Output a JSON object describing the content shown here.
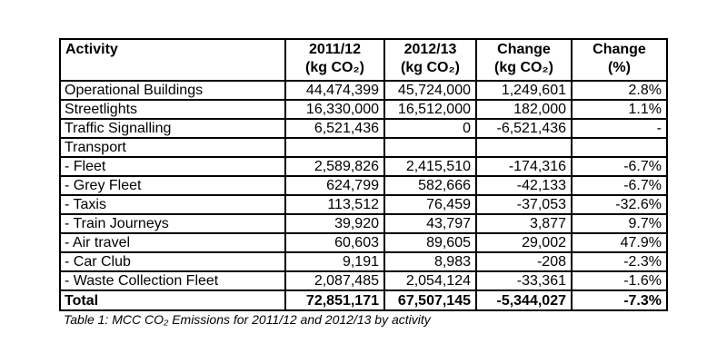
{
  "colors": {
    "page_background": "#ffffff",
    "border": "#000000",
    "text": "#000000"
  },
  "table": {
    "columns": [
      {
        "id": "activity",
        "line1": "Activity",
        "line2": ""
      },
      {
        "id": "y2011_12",
        "line1": "2011/12",
        "line2": "(kg CO₂)"
      },
      {
        "id": "y2012_13",
        "line1": "2012/13",
        "line2": "(kg CO₂)"
      },
      {
        "id": "change_kg",
        "line1": "Change",
        "line2": "(kg CO₂)"
      },
      {
        "id": "change_pct",
        "line1": "Change",
        "line2": "(%)"
      }
    ],
    "rows": [
      {
        "activity": "Operational Buildings",
        "y2011_12": "44,474,399",
        "y2012_13": "45,724,000",
        "change_kg": "1,249,601",
        "change_pct": "2.8%",
        "total": false
      },
      {
        "activity": "Streetlights",
        "y2011_12": "16,330,000",
        "y2012_13": "16,512,000",
        "change_kg": "182,000",
        "change_pct": "1.1%",
        "total": false
      },
      {
        "activity": "Traffic Signalling",
        "y2011_12": "6,521,436",
        "y2012_13": "0",
        "change_kg": "-6,521,436",
        "change_pct": "-",
        "total": false
      },
      {
        "activity": "Transport",
        "y2011_12": "",
        "y2012_13": "",
        "change_kg": "",
        "change_pct": "",
        "total": false
      },
      {
        "activity": "- Fleet",
        "y2011_12": "2,589,826",
        "y2012_13": "2,415,510",
        "change_kg": "-174,316",
        "change_pct": "-6.7%",
        "total": false
      },
      {
        "activity": "- Grey Fleet",
        "y2011_12": "624,799",
        "y2012_13": "582,666",
        "change_kg": "-42,133",
        "change_pct": "-6.7%",
        "total": false
      },
      {
        "activity": "- Taxis",
        "y2011_12": "113,512",
        "y2012_13": "76,459",
        "change_kg": "-37,053",
        "change_pct": "-32.6%",
        "total": false
      },
      {
        "activity": "- Train Journeys",
        "y2011_12": "39,920",
        "y2012_13": "43,797",
        "change_kg": "3,877",
        "change_pct": "9.7%",
        "total": false
      },
      {
        "activity": "- Air travel",
        "y2011_12": "60,603",
        "y2012_13": "89,605",
        "change_kg": "29,002",
        "change_pct": "47.9%",
        "total": false
      },
      {
        "activity": "- Car Club",
        "y2011_12": "9,191",
        "y2012_13": "8,983",
        "change_kg": "-208",
        "change_pct": "-2.3%",
        "total": false
      },
      {
        "activity": "- Waste Collection Fleet",
        "y2011_12": "2,087,485",
        "y2012_13": "2,054,124",
        "change_kg": "-33,361",
        "change_pct": "-1.6%",
        "total": false
      },
      {
        "activity": "Total",
        "y2011_12": "72,851,171",
        "y2012_13": "67,507,145",
        "change_kg": "-5,344,027",
        "change_pct": "-7.3%",
        "total": true
      }
    ]
  },
  "caption": "Table 1: MCC CO₂ Emissions for 2011/12 and 2012/13 by activity"
}
